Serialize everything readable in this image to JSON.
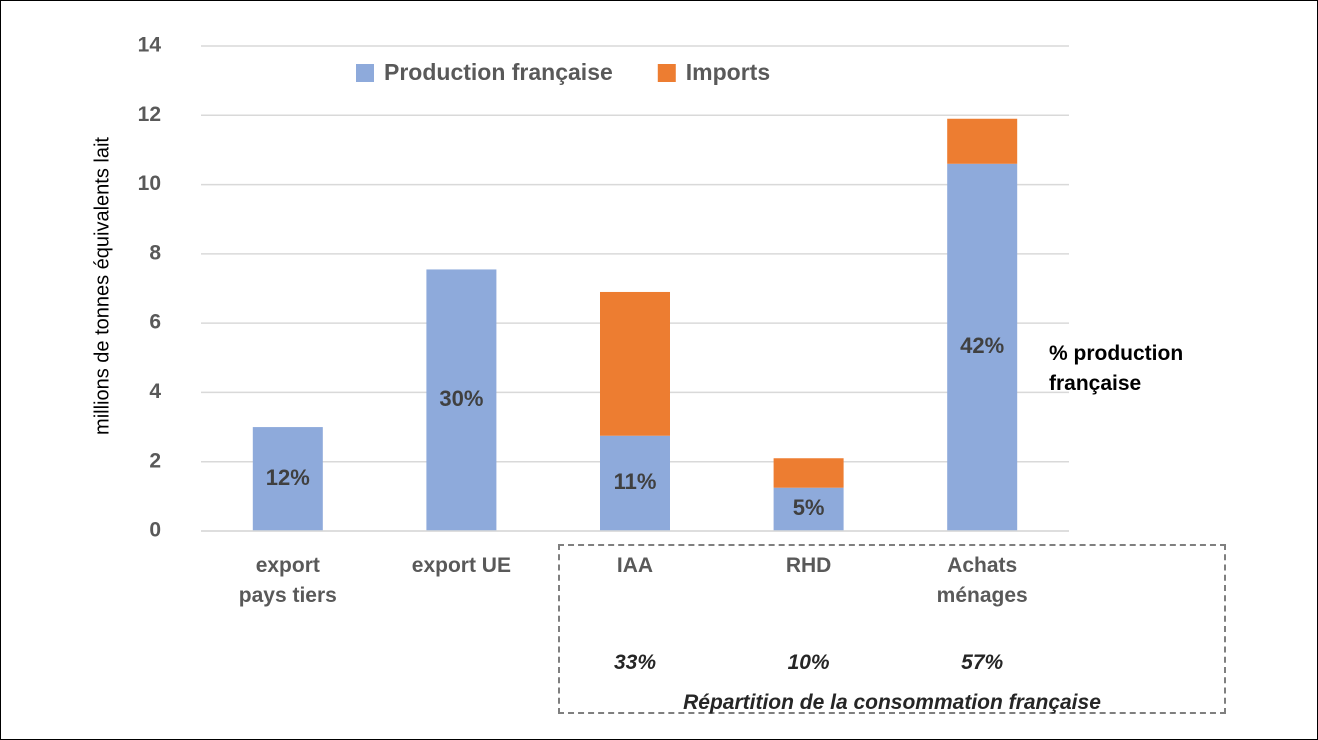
{
  "chart_data": {
    "type": "bar",
    "stacked": true,
    "ylabel": "millions de tonnes équivalents lait",
    "categories": [
      "export pays tiers",
      "export UE",
      "IAA",
      "RHD",
      "Achats ménages"
    ],
    "series": [
      {
        "name": "Production française",
        "color": "#8eaadb",
        "values": [
          3.0,
          7.55,
          2.75,
          1.25,
          10.6
        ]
      },
      {
        "name": "Imports",
        "color": "#ed7d31",
        "values": [
          0,
          0,
          4.15,
          0.85,
          1.3
        ]
      }
    ],
    "ylim": [
      0,
      14
    ],
    "yticks": [
      0,
      2,
      4,
      6,
      8,
      10,
      12,
      14
    ],
    "grid": true,
    "legend": "top",
    "production_shares": [
      "12%",
      "30%",
      "11%",
      "5%",
      "42%"
    ],
    "production_note": "% production française",
    "consumption_shares": [
      "33%",
      "10%",
      "57%"
    ],
    "consumption_note": "Répartition de la consommation française"
  }
}
